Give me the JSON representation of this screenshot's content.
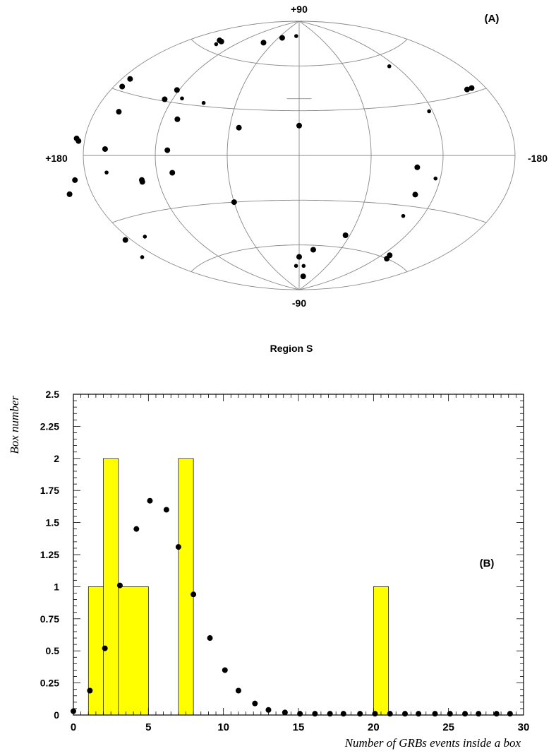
{
  "chart_data": [
    {
      "type": "scatter",
      "projection": "aitoff",
      "panel_label": "(A)",
      "caption": "Region S",
      "lat_labels": {
        "top": "+90",
        "bottom": "-90"
      },
      "lon_labels": {
        "left": "+180",
        "right": "-180"
      },
      "grid": true,
      "points": [
        {
          "lon": 150,
          "lat": 66,
          "size": "large"
        },
        {
          "lon": 145,
          "lat": 66,
          "size": "large"
        },
        {
          "lon": 144,
          "lat": 64,
          "size": "small"
        },
        {
          "lon": 80,
          "lat": 73,
          "size": "large"
        },
        {
          "lon": 50,
          "lat": 78,
          "size": "large"
        },
        {
          "lon": 10,
          "lat": 80,
          "size": "small"
        },
        {
          "lon": -113,
          "lat": 53,
          "size": "small"
        },
        {
          "lon": 173,
          "lat": 36,
          "size": "large"
        },
        {
          "lon": 173,
          "lat": 32,
          "size": "large"
        },
        {
          "lon": 122,
          "lat": 37,
          "size": "large"
        },
        {
          "lon": 127,
          "lat": 31,
          "size": "large"
        },
        {
          "lon": 112,
          "lat": 33,
          "size": "small"
        },
        {
          "lon": 90,
          "lat": 32,
          "size": "small"
        },
        {
          "lon": 160,
          "lat": 21,
          "size": "large"
        },
        {
          "lon": 107,
          "lat": 21,
          "size": "large"
        },
        {
          "lon": 52,
          "lat": 18,
          "size": "large"
        },
        {
          "lon": 0,
          "lat": 20,
          "size": "large"
        },
        {
          "lon": -117,
          "lat": 25,
          "size": "small"
        },
        {
          "lon": -163,
          "lat": 32,
          "size": "large"
        },
        {
          "lon": -168,
          "lat": 32,
          "size": "large"
        },
        {
          "lon": 185,
          "lat": 6,
          "size": "large"
        },
        {
          "lon": 187,
          "lat": 7,
          "size": "large"
        },
        {
          "lon": 162,
          "lat": 3,
          "size": "large"
        },
        {
          "lon": 110,
          "lat": 3,
          "size": "large"
        },
        {
          "lon": 162,
          "lat": -8,
          "size": "small"
        },
        {
          "lon": 190,
          "lat": -10,
          "size": "large"
        },
        {
          "lon": 199,
          "lat": -15,
          "size": "large"
        },
        {
          "lon": 134,
          "lat": -14,
          "size": "large"
        },
        {
          "lon": 134,
          "lat": -13,
          "size": "large"
        },
        {
          "lon": 107,
          "lat": -10,
          "size": "large"
        },
        {
          "lon": -99,
          "lat": -7,
          "size": "large"
        },
        {
          "lon": -103,
          "lat": -23,
          "size": "large"
        },
        {
          "lon": -102,
          "lat": -36,
          "size": "small"
        },
        {
          "lon": -116,
          "lat": -13,
          "size": "small"
        },
        {
          "lon": 185,
          "lat": -38,
          "size": "large"
        },
        {
          "lon": 165,
          "lat": -40,
          "size": "small"
        },
        {
          "lon": 193,
          "lat": -46,
          "size": "small"
        },
        {
          "lon": 60,
          "lat": -30,
          "size": "large"
        },
        {
          "lon": -55,
          "lat": -52,
          "size": "large"
        },
        {
          "lon": -21,
          "lat": -63,
          "size": "large"
        },
        {
          "lon": -129,
          "lat": -58,
          "size": "large"
        },
        {
          "lon": -132,
          "lat": -60,
          "size": "large"
        },
        {
          "lon": 0,
          "lat": -68,
          "size": "large"
        },
        {
          "lon": 7,
          "lat": -74,
          "size": "small"
        },
        {
          "lon": -10,
          "lat": -74,
          "size": "small"
        },
        {
          "lon": -15,
          "lat": -81,
          "size": "large"
        }
      ]
    },
    {
      "type": "bar",
      "panel_label": "(B)",
      "xlabel": "Number of GRBs events inside a box",
      "ylabel": "Box number",
      "xlim": [
        0,
        30
      ],
      "ylim": [
        0,
        2.5
      ],
      "x_ticks": [
        "0",
        "5",
        "10",
        "15",
        "20",
        "25",
        "30"
      ],
      "y_ticks": [
        "0",
        "0.25",
        "0.5",
        "0.75",
        "1",
        "1.25",
        "1.5",
        "1.75",
        "2",
        "2.25",
        "2.5"
      ],
      "bar_color": "#ffff00",
      "histogram_bins": [
        {
          "x_start": 1,
          "x_end": 2,
          "value": 1
        },
        {
          "x_start": 2,
          "x_end": 3,
          "value": 2
        },
        {
          "x_start": 3,
          "x_end": 5,
          "value": 1
        },
        {
          "x_start": 7,
          "x_end": 8,
          "value": 2
        },
        {
          "x_start": 20,
          "x_end": 21,
          "value": 1
        }
      ],
      "points": [
        {
          "x": 0,
          "y": 0.03
        },
        {
          "x": 1.1,
          "y": 0.19
        },
        {
          "x": 2.1,
          "y": 0.52
        },
        {
          "x": 3.1,
          "y": 1.01
        },
        {
          "x": 4.2,
          "y": 1.45
        },
        {
          "x": 5.1,
          "y": 1.67
        },
        {
          "x": 6.2,
          "y": 1.6
        },
        {
          "x": 7,
          "y": 1.31
        },
        {
          "x": 8,
          "y": 0.94
        },
        {
          "x": 9.1,
          "y": 0.6
        },
        {
          "x": 10.1,
          "y": 0.35
        },
        {
          "x": 11,
          "y": 0.19
        },
        {
          "x": 12.1,
          "y": 0.09
        },
        {
          "x": 13,
          "y": 0.04
        },
        {
          "x": 14.1,
          "y": 0.02
        },
        {
          "x": 15.1,
          "y": 0.01
        },
        {
          "x": 16.1,
          "y": 0.01
        },
        {
          "x": 17.1,
          "y": 0.01
        },
        {
          "x": 18,
          "y": 0.01
        },
        {
          "x": 19.1,
          "y": 0.01
        },
        {
          "x": 20.1,
          "y": 0.01
        },
        {
          "x": 21.1,
          "y": 0.01
        },
        {
          "x": 22.1,
          "y": 0.01
        },
        {
          "x": 23,
          "y": 0.01
        },
        {
          "x": 24.1,
          "y": 0.01
        },
        {
          "x": 25.1,
          "y": 0.01
        },
        {
          "x": 26.1,
          "y": 0.01
        },
        {
          "x": 27,
          "y": 0.01
        },
        {
          "x": 28.2,
          "y": 0.01
        },
        {
          "x": 29.1,
          "y": 0.01
        }
      ]
    }
  ]
}
